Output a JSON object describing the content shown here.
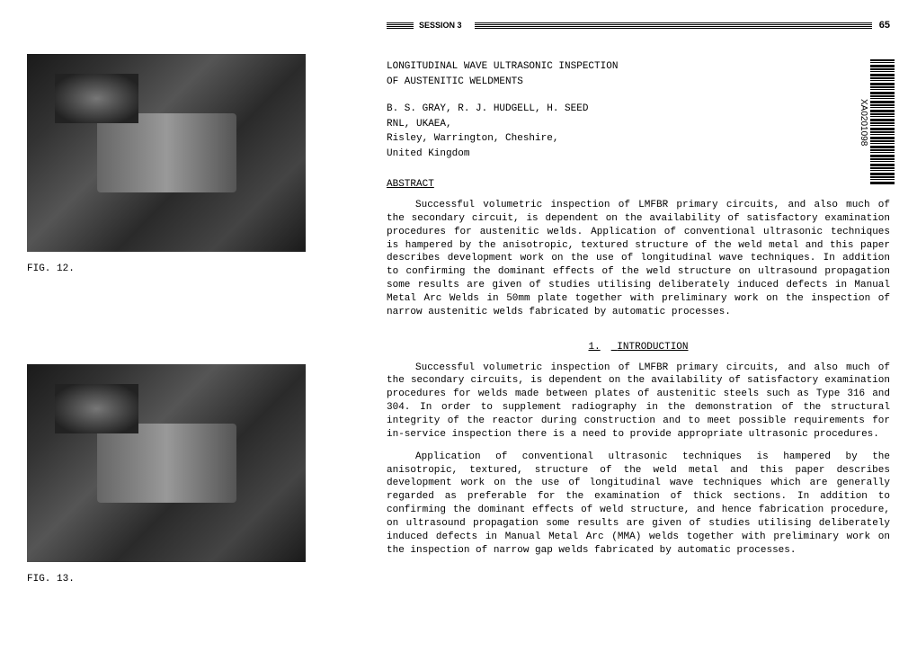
{
  "left": {
    "fig12_caption": "FIG. 12.",
    "fig13_caption": "FIG. 13."
  },
  "header": {
    "session": "SESSION 3",
    "page": "65"
  },
  "barcode": {
    "id": "XA0201098"
  },
  "title": {
    "line1": "LONGITUDINAL WAVE ULTRASONIC INSPECTION",
    "line2": "OF AUSTENITIC WELDMENTS"
  },
  "authors": {
    "names": "B. S. GRAY, R. J. HUDGELL, H. SEED",
    "affiliation1": "RNL, UKAEA,",
    "affiliation2": "Risley, Warrington, Cheshire,",
    "affiliation3": "United Kingdom"
  },
  "abstract": {
    "heading": "ABSTRACT",
    "text": "Successful volumetric inspection of LMFBR primary circuits, and also much of the secondary circuit, is dependent on the availability of satisfactory examination procedures for austenitic welds. Application of conventional ultrasonic techniques is hampered by the anisotropic, textured structure of the weld metal and this paper describes development work on the use of longitudinal wave techniques. In addition to confirming the dominant effects of the weld structure on ultrasound propagation some results are given of studies utilising deliberately induced defects in Manual Metal Arc Welds in 50mm plate together with preliminary work on the inspection of narrow austenitic welds fabricated by automatic processes."
  },
  "introduction": {
    "number": "1.",
    "heading": "INTRODUCTION",
    "para1": "Successful volumetric inspection of LMFBR primary circuits, and also much of the secondary circuits, is dependent on the availability of satisfactory examination procedures for welds made between plates of austenitic steels such as Type 316 and 304. In order to supplement radiography in the demonstration of the structural integrity of the reactor during construction and to meet possible requirements for in-service inspection there is a need to provide appropriate ultrasonic procedures.",
    "para2": "Application of conventional ultrasonic techniques is hampered by the anisotropic, textured, structure of the weld metal and this paper describes development work on the use of longitudinal wave techniques which are generally regarded as preferable for the examination of thick sections. In addition to confirming the dominant effects of weld structure, and hence fabrication procedure, on ultrasound propagation some results are given of studies utilising deliberately induced defects in Manual Metal Arc (MMA) welds together with preliminary work on the inspection of narrow gap welds fabricated by automatic processes."
  }
}
